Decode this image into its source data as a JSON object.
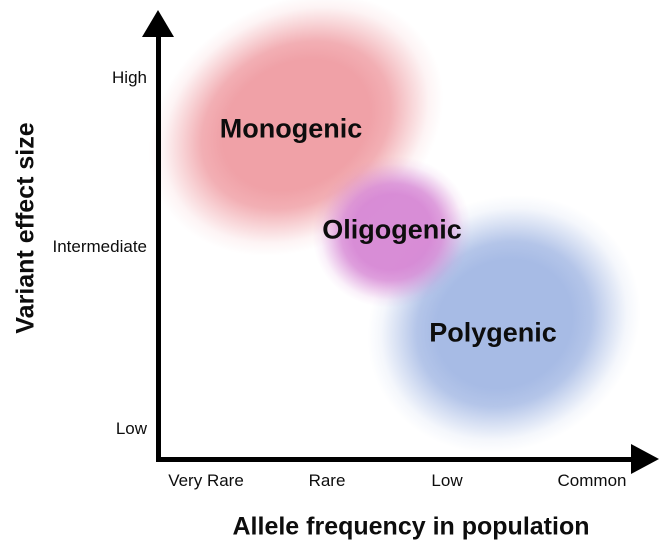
{
  "figure": {
    "type": "conceptual-plot",
    "background_color": "#ffffff",
    "axis_color": "#000000",
    "text_color": "#0d0d0d",
    "y_axis": {
      "title": "Variant effect size",
      "ticks": [
        "High",
        "Intermediate",
        "Low"
      ]
    },
    "x_axis": {
      "title": "Allele frequency in population",
      "ticks": [
        "Very Rare",
        "Rare",
        "Low",
        "Common"
      ]
    },
    "regions": [
      {
        "label": "Monogenic",
        "color": "#f0a1a7",
        "x_range": "Very Rare to Rare",
        "y_range": "Intermediate to High"
      },
      {
        "label": "Oligogenic",
        "color": "#d583d3",
        "x_range": "Rare to Low",
        "y_range": "Intermediate"
      },
      {
        "label": "Polygenic",
        "color": "#a7bbe5",
        "x_range": "Low to Common",
        "y_range": "Low to Intermediate"
      }
    ]
  }
}
